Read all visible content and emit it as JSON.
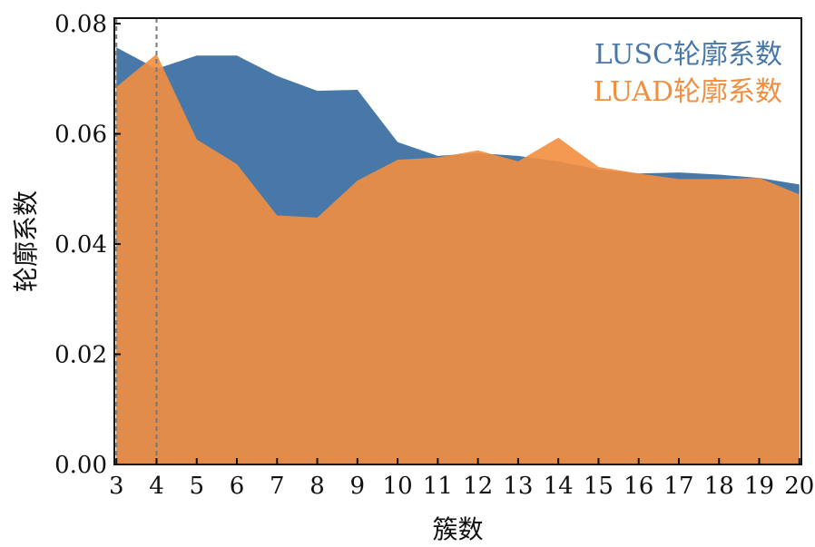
{
  "chart_data": {
    "type": "area",
    "xlabel": "簇数",
    "ylabel": "轮廓系数",
    "x": [
      3,
      4,
      5,
      6,
      7,
      8,
      9,
      10,
      11,
      12,
      13,
      14,
      15,
      16,
      17,
      18,
      19,
      20
    ],
    "xlim": [
      2.95,
      20.05
    ],
    "ylim": [
      0,
      0.081
    ],
    "yticks": [
      0.0,
      0.02,
      0.04,
      0.06,
      0.08
    ],
    "ytick_labels": [
      "0.00",
      "0.02",
      "0.04",
      "0.06",
      "0.08"
    ],
    "xtick_labels": [
      "3",
      "4",
      "5",
      "6",
      "7",
      "8",
      "9",
      "10",
      "11",
      "12",
      "13",
      "14",
      "15",
      "16",
      "17",
      "18",
      "19",
      "20"
    ],
    "vlines": [
      3,
      4
    ],
    "legend_position": "top-right",
    "series": [
      {
        "name": "LUSC轮廓系数",
        "color": "#4878a8",
        "values": [
          0.0757,
          0.0718,
          0.0742,
          0.0742,
          0.0705,
          0.0678,
          0.068,
          0.0585,
          0.056,
          0.0565,
          0.056,
          0.055,
          0.0535,
          0.0528,
          0.053,
          0.0526,
          0.052,
          0.0508
        ]
      },
      {
        "name": "LUAD轮廓系数",
        "color": "#f28e3f",
        "values": [
          0.0685,
          0.0745,
          0.059,
          0.0545,
          0.0452,
          0.0448,
          0.0515,
          0.0553,
          0.0557,
          0.057,
          0.055,
          0.0593,
          0.054,
          0.0528,
          0.0518,
          0.0518,
          0.052,
          0.049
        ]
      }
    ]
  }
}
